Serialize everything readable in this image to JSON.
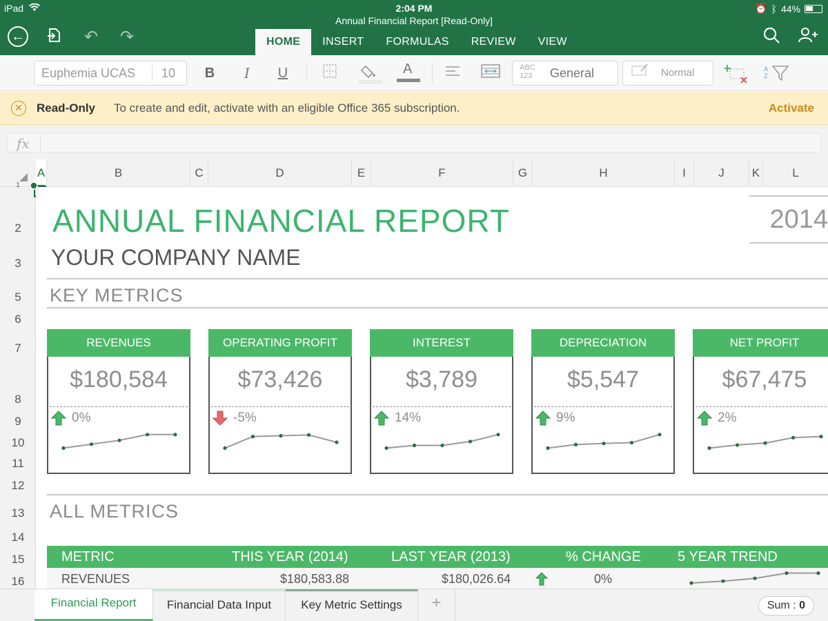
{
  "statusbar": {
    "device": "iPad",
    "time": "2:04 PM",
    "battery": "44%"
  },
  "header": {
    "doc_title": "Annual Financial Report [Read-Only]",
    "tabs": [
      {
        "label": "HOME",
        "active": true
      },
      {
        "label": "INSERT"
      },
      {
        "label": "FORMULAS"
      },
      {
        "label": "REVIEW"
      },
      {
        "label": "VIEW"
      }
    ]
  },
  "toolbar": {
    "font_name": "Euphemia UCAS",
    "font_size": "10",
    "bold": "B",
    "italic": "I",
    "underline": "U",
    "number_format_icon": "ABC 123",
    "number_format": "General",
    "cell_style": "Normal",
    "font_color_glyph": "A",
    "sort_icon_glyph": "AZ"
  },
  "readonly_bar": {
    "label": "Read-Only",
    "message": "To create and edit, activate with an eligible Office 365 subscription.",
    "action": "Activate"
  },
  "formula_bar": {
    "fx": "fx",
    "value": ""
  },
  "columns": [
    "A",
    "B",
    "C",
    "D",
    "E",
    "F",
    "G",
    "H",
    "I",
    "J",
    "K",
    "L"
  ],
  "rows": [
    "1",
    "2",
    "3",
    "5",
    "6",
    "7",
    "8",
    "9",
    "10",
    "11",
    "12",
    "13",
    "14",
    "15",
    "16"
  ],
  "sheet": {
    "title": "ANNUAL FINANCIAL REPORT",
    "year": "2014",
    "company": "YOUR COMPANY NAME",
    "key_metrics_title": "KEY METRICS",
    "all_metrics_title": "ALL METRICS",
    "cards": [
      {
        "name": "REVENUES",
        "value": "$180,584",
        "change": "0%",
        "direction": "up",
        "trend": [
          1,
          2,
          3,
          4.5,
          4.5
        ]
      },
      {
        "name": "OPERATING PROFIT",
        "value": "$73,426",
        "change": "-5%",
        "direction": "down",
        "trend": [
          1,
          4,
          4.2,
          4.4,
          2.5
        ]
      },
      {
        "name": "INTEREST",
        "value": "$3,789",
        "change": "14%",
        "direction": "up",
        "trend": [
          1,
          1.7,
          1.7,
          2.7,
          4.5
        ]
      },
      {
        "name": "DEPRECIATION",
        "value": "$5,547",
        "change": "9%",
        "direction": "up",
        "trend": [
          1,
          1.9,
          2.2,
          2.4,
          4.5
        ]
      },
      {
        "name": "NET PROFIT",
        "value": "$67,475",
        "change": "2%",
        "direction": "up",
        "trend": [
          1,
          1.8,
          2.3,
          3.7,
          4
        ]
      }
    ],
    "table": {
      "headers": [
        "METRIC",
        "THIS YEAR (2014)",
        "LAST YEAR (2013)",
        "% CHANGE",
        "5 YEAR TREND"
      ],
      "rows": [
        {
          "metric": "REVENUES",
          "this_year": "$180,583.88",
          "last_year": "$180,026.64",
          "direction": "up",
          "change": "0%",
          "trend": [
            1,
            1.7,
            2.7,
            4.6,
            4.6
          ]
        }
      ]
    }
  },
  "sheet_tabs": [
    {
      "label": "Financial Report",
      "active": true
    },
    {
      "label": "Financial Data Input"
    },
    {
      "label": "Key Metric Settings"
    }
  ],
  "add_sheet": "+",
  "sum": {
    "label": "Sum :",
    "value": "0"
  },
  "colors": {
    "accent": "#217346",
    "green": "#4bb867",
    "title_green": "#3cb46e",
    "down_red": "#e05656"
  }
}
